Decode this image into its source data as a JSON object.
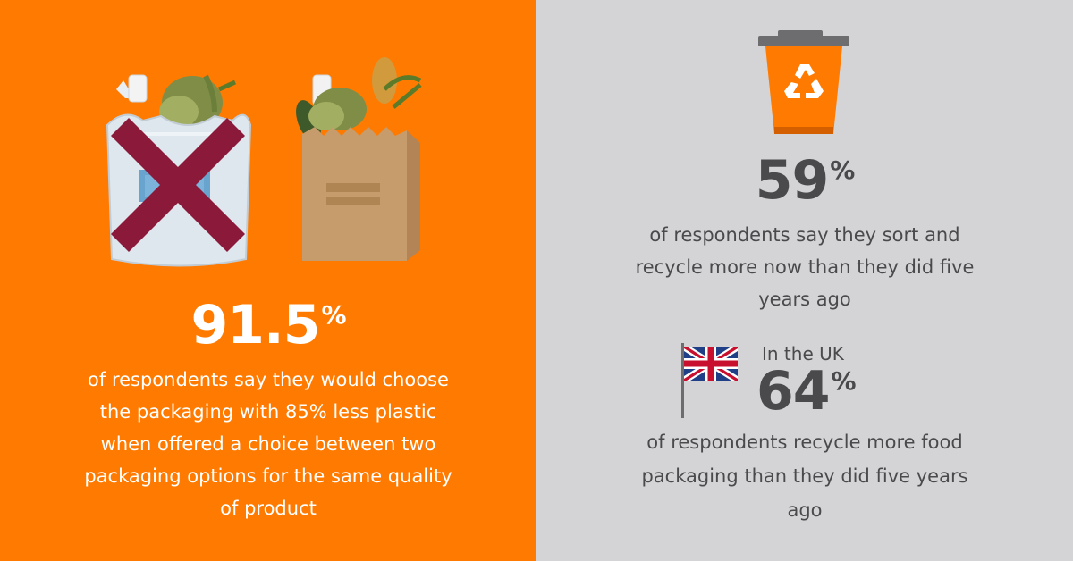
{
  "left": {
    "stat_value": "91.5",
    "stat_unit": "%",
    "description": "of respondents say they would choose the packaging with 85% less plastic when offered a choice between two packaging options for the same quality of product",
    "background_color": "#ff7a00"
  },
  "right": {
    "stat1": {
      "value": "59",
      "unit": "%",
      "description": "of respondents say they sort and recycle more now than they did five years ago"
    },
    "stat2": {
      "label": "In the UK",
      "value": "64",
      "unit": "%",
      "description": "of respondents recycle more food packaging than they did five years ago"
    },
    "background_color": "#d4d4d6",
    "text_color": "#4a4a4c"
  },
  "icons": [
    "plastic-bag-icon",
    "cross-icon",
    "paper-bag-icon",
    "recycling-bin-icon",
    "recycle-symbol-icon",
    "uk-flag-icon"
  ]
}
